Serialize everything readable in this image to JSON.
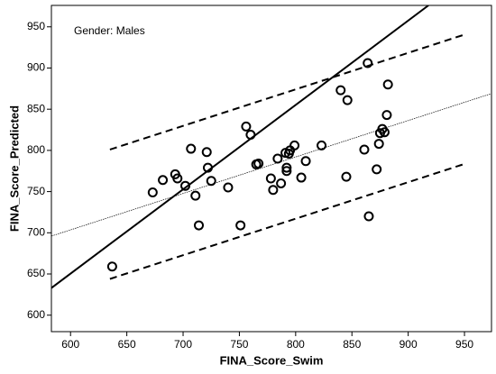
{
  "chart_data": {
    "type": "scatter",
    "annotation": "Gender: Males",
    "xlabel": "FINA_Score_Swim",
    "ylabel": "FINA_Score_Predicted",
    "xlim": [
      583,
      974
    ],
    "ylim": [
      580,
      976
    ],
    "xticks": [
      600,
      650,
      700,
      750,
      800,
      850,
      900,
      950
    ],
    "yticks": [
      600,
      650,
      700,
      750,
      800,
      850,
      900,
      950
    ],
    "color": "#000000",
    "x": [
      637,
      673,
      682,
      693,
      695,
      702,
      707,
      711,
      714,
      721,
      722,
      725,
      740,
      751,
      756,
      760,
      765,
      767,
      778,
      780,
      784,
      787,
      791,
      792,
      792,
      794,
      795,
      799,
      805,
      809,
      823,
      840,
      846,
      845,
      861,
      864,
      865,
      872,
      874,
      875,
      877,
      879,
      881,
      882
    ],
    "y": [
      659,
      749,
      764,
      771,
      766,
      757,
      802,
      745,
      709,
      798,
      779,
      763,
      755,
      709,
      829,
      819,
      783,
      784,
      766,
      752,
      790,
      760,
      797,
      779,
      775,
      796,
      800,
      806,
      767,
      787,
      806,
      873,
      861,
      768,
      801,
      906,
      720,
      777,
      808,
      821,
      826,
      822,
      843,
      880
    ],
    "lines": [
      {
        "x": [
          583,
          918
        ],
        "y": [
          633,
          976
        ],
        "style": "solid",
        "width": 2
      },
      {
        "x": [
          583,
          974
        ],
        "y": [
          696,
          869
        ],
        "style": "dotted",
        "width": 0.7
      },
      {
        "x": [
          635,
          951
        ],
        "y": [
          801,
          941
        ],
        "style": "dashed",
        "width": 2
      },
      {
        "x": [
          635,
          951
        ],
        "y": [
          644,
          784
        ],
        "style": "dashed",
        "width": 2
      }
    ]
  }
}
